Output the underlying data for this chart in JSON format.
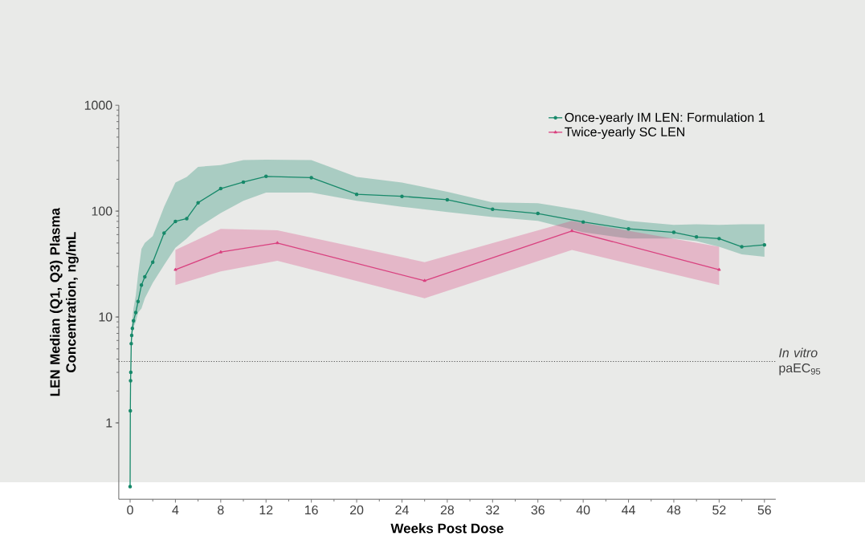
{
  "chart_data": {
    "type": "line",
    "xlabel": "Weeks Post Dose",
    "ylabel": "LEN Median (Q1, Q3) Plasma Concentration, ng/mL",
    "log": "y",
    "xlim": [
      -1,
      57
    ],
    "ylim": [
      0.19,
      1000
    ],
    "xticks": [
      0,
      4,
      8,
      12,
      16,
      20,
      24,
      28,
      32,
      36,
      40,
      44,
      48,
      52,
      56
    ],
    "yticks": [
      1,
      10,
      100,
      1000
    ],
    "legend": "top right",
    "grid": false,
    "ref_lines": [
      {
        "axis": "y",
        "value": 3.8,
        "label": "*In vitro* paEC$_{95}$",
        "line_style": "dotted",
        "color": "#555555"
      }
    ],
    "series": [
      {
        "name": "Once-yearly IM LEN: Formulation 1",
        "color": "#17896a",
        "marker": "circle",
        "x": [
          0,
          0.02,
          0.04,
          0.06,
          0.1,
          0.14,
          0.2,
          0.3,
          0.5,
          0.7,
          1,
          1.3,
          2,
          3,
          4,
          5,
          6,
          8,
          10,
          12,
          16,
          20,
          24,
          28,
          32,
          36,
          40,
          44,
          48,
          50,
          52,
          54,
          56
        ],
        "values": [
          0.25,
          1.3,
          2.5,
          3,
          5.6,
          6.7,
          7.8,
          9.2,
          11,
          14,
          20,
          24,
          33,
          62,
          80,
          85,
          120,
          163,
          188,
          213,
          207,
          144,
          138,
          128,
          104,
          95,
          79,
          68,
          63,
          57,
          55,
          46,
          48
        ],
        "lower": [
          0.2,
          1.1,
          2.2,
          2.7,
          5,
          6,
          7,
          8,
          9,
          11,
          12,
          15,
          21,
          31,
          45,
          55,
          70,
          96,
          125,
          150,
          150,
          125,
          110,
          98,
          88,
          81,
          63,
          55,
          55,
          52,
          46,
          39,
          37
        ],
        "upper": [
          0.3,
          1.5,
          2.8,
          3.4,
          6.5,
          8,
          9.5,
          12,
          16,
          25,
          44,
          50,
          58,
          110,
          186,
          210,
          262,
          272,
          303,
          306,
          303,
          210,
          186,
          152,
          121,
          119,
          101,
          81,
          74,
          75,
          74,
          75,
          75
        ]
      },
      {
        "name": "Twice-yearly SC LEN",
        "color": "#d9417f",
        "marker": "triangle",
        "x": [
          4,
          8,
          13,
          26,
          39,
          52
        ],
        "values": [
          28,
          41,
          50,
          22,
          65,
          28
        ],
        "lower": [
          20,
          27,
          34,
          15,
          43,
          20
        ],
        "upper": [
          43,
          68,
          66,
          33,
          81,
          46
        ]
      }
    ]
  }
}
